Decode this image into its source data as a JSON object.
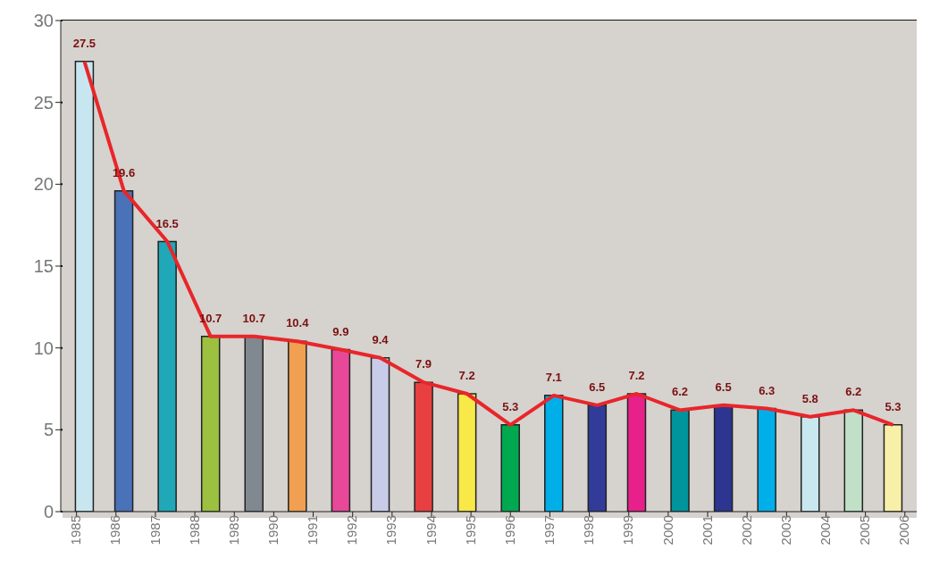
{
  "chart_data": {
    "type": "bar",
    "x": [
      1985.2,
      1986.2,
      1987.3,
      1988.4,
      1989.5,
      1990.6,
      1991.7,
      1992.7,
      1993.8,
      1994.9,
      1996.0,
      1997.1,
      1998.2,
      1999.2,
      2000.3,
      2001.4,
      2002.5,
      2003.6,
      2004.7,
      2005.7
    ],
    "series": [
      {
        "values": [
          27.5,
          19.6,
          16.5,
          10.7,
          10.7,
          10.4,
          9.9,
          9.4,
          7.9,
          7.2,
          5.3,
          7.1,
          6.5,
          7.2,
          6.2,
          6.5,
          6.3,
          5.8,
          6.2,
          5.3
        ],
        "value_labels": [
          "27.5",
          "19.6",
          "16.5",
          "10.7",
          "10.7",
          "10.4",
          "9.9",
          "9.4",
          "7.9",
          "7.2",
          "5.3",
          "7.1",
          "6.5",
          "7.2",
          "6.2",
          "6.5",
          "6.3",
          "5.8",
          "6.2",
          "5.3"
        ],
        "colors": [
          "#c8e6f0",
          "#4a72b8",
          "#20a8b8",
          "#9cc040",
          "#808890",
          "#f0a050",
          "#e84898",
          "#c8cce8",
          "#e84040",
          "#f8e848",
          "#00a850",
          "#00aee8",
          "#303c98",
          "#e8208a",
          "#00949c",
          "#2c3590",
          "#00aee8",
          "#c8e8f0",
          "#c0e0c8",
          "#f8f0a8"
        ]
      },
      {
        "type": "line",
        "color": "#e8262a",
        "values": [
          27.5,
          19.6,
          16.5,
          10.7,
          10.7,
          10.4,
          9.9,
          9.4,
          7.9,
          7.2,
          5.3,
          7.1,
          6.5,
          7.2,
          6.2,
          6.5,
          6.3,
          5.8,
          6.2,
          5.3
        ]
      }
    ],
    "grid": "y",
    "xlim": [
      1984.6,
      2006.3
    ],
    "xticks": [
      1985,
      1986,
      1987,
      1988,
      1989,
      1990,
      1991,
      1992,
      1993,
      1994,
      1995,
      1996,
      1997,
      1998,
      1999,
      2000,
      2001,
      2002,
      2003,
      2004,
      2005,
      2006
    ],
    "ylim": [
      0,
      30
    ],
    "yticks": [
      0,
      5,
      10,
      15,
      20,
      25,
      30
    ]
  }
}
